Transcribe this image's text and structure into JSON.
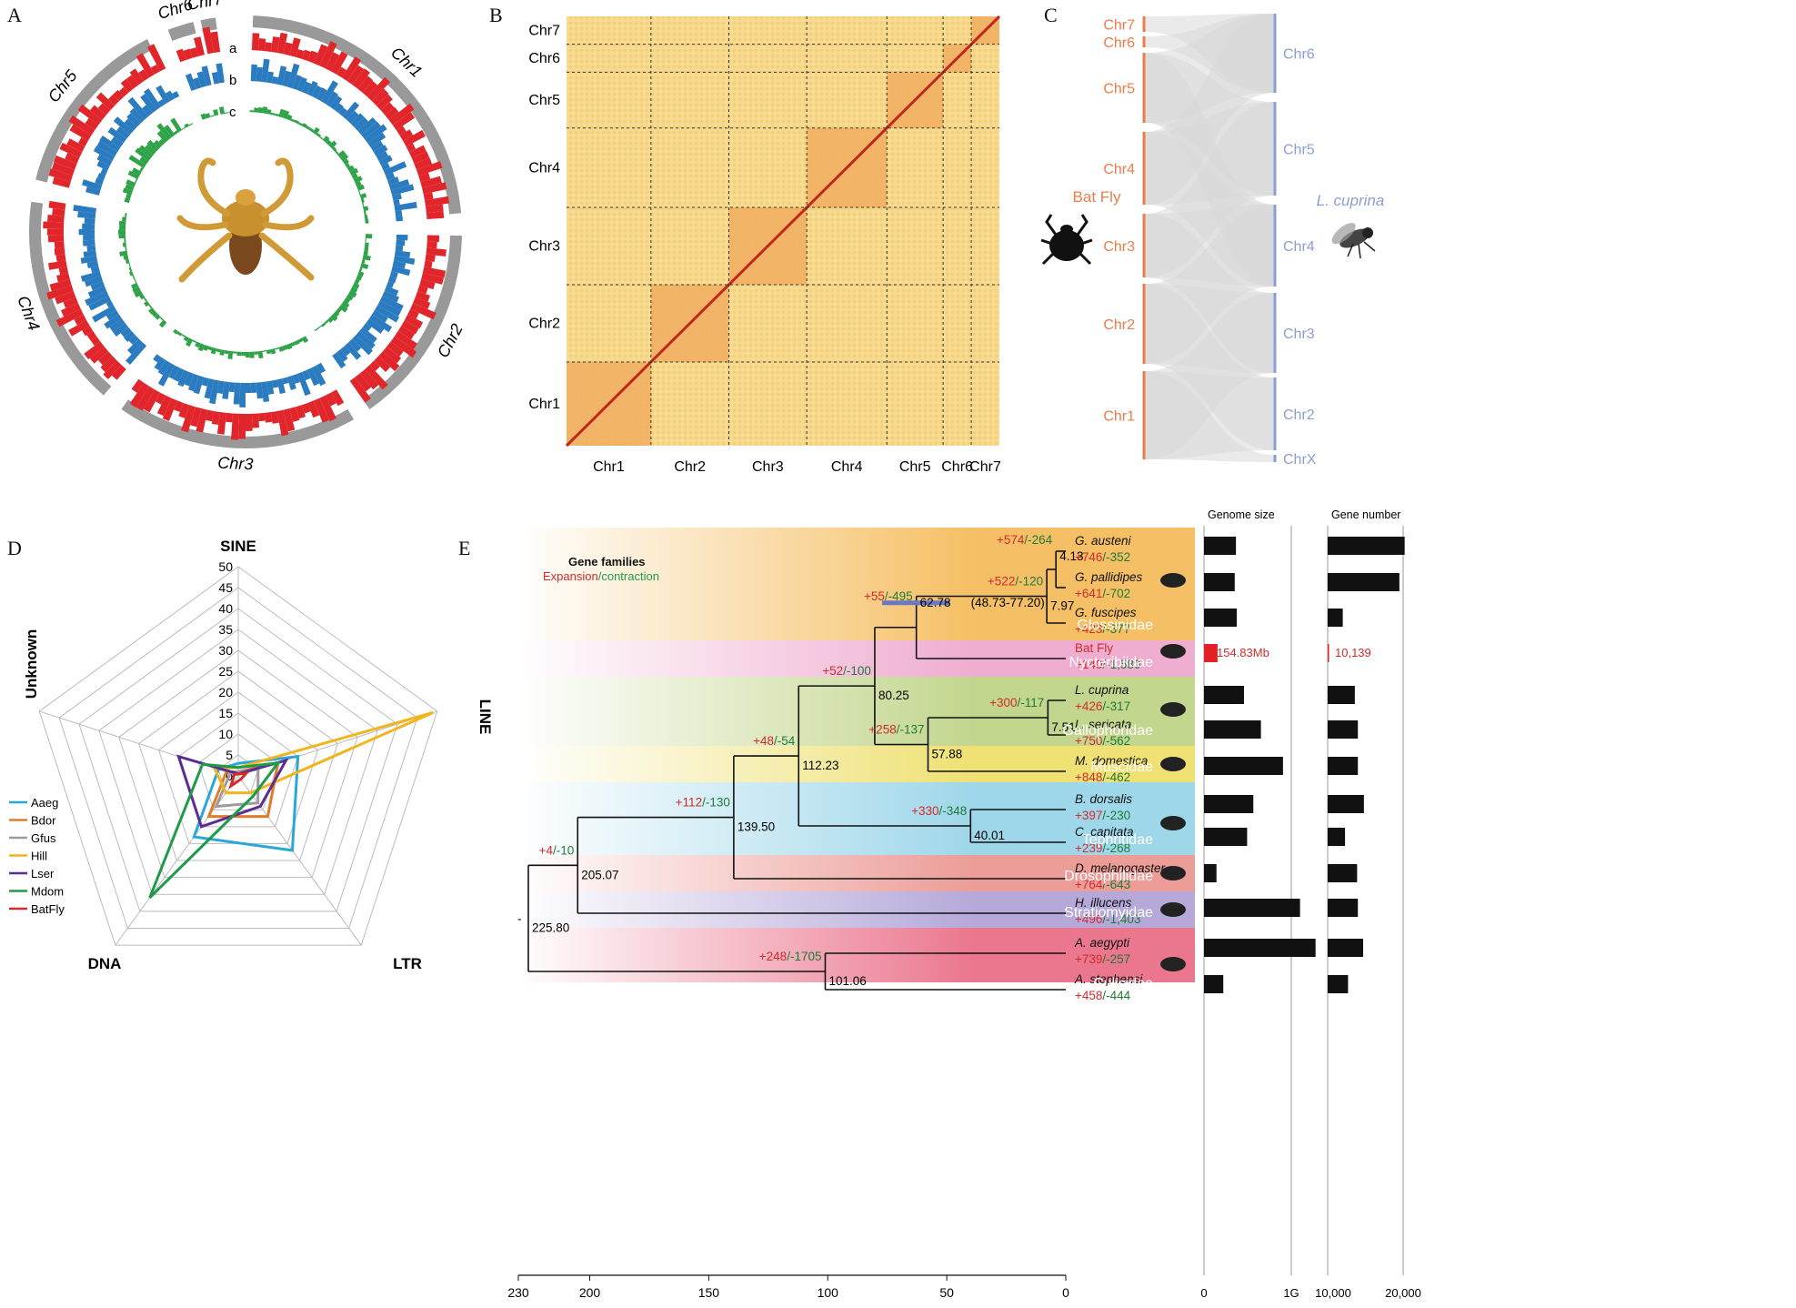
{
  "panels": {
    "a": "A",
    "b": "B",
    "c": "C",
    "d": "D",
    "e": "E"
  },
  "circos": {
    "chromosomes": [
      "Chr1",
      "Chr2",
      "Chr3",
      "Chr4",
      "Chr5",
      "Chr6",
      "Chr7"
    ],
    "ring_labels": [
      "a",
      "b",
      "c"
    ],
    "colors": {
      "chrom": "#999999",
      "a": "#e0262b",
      "b": "#2a7bbf",
      "c": "#2fa348"
    }
  },
  "hic": {
    "chromosomes": [
      "Chr1",
      "Chr2",
      "Chr3",
      "Chr4",
      "Chr5",
      "Chr6",
      "Chr7"
    ]
  },
  "synteny": {
    "left_species": "Bat Fly",
    "right_species": "L. cuprina",
    "left_chromosomes": [
      "Chr7",
      "Chr6",
      "Chr5",
      "Chr4",
      "Chr3",
      "Chr2",
      "Chr1"
    ],
    "right_chromosomes": [
      "Chr6",
      "Chr5",
      "Chr4",
      "Chr3",
      "Chr2",
      "ChrX"
    ],
    "colors": {
      "left": "#ee7c4a",
      "right": "#8b9fd4"
    }
  },
  "chart_data": {
    "type": "radar",
    "axes": [
      "SINE",
      "LINE",
      "LTR",
      "DNA",
      "Unknown"
    ],
    "ticks": [
      "0",
      "5",
      "10",
      "15",
      "20",
      "25",
      "30",
      "35",
      "40",
      "45",
      "50"
    ],
    "rmax": 50,
    "series": [
      {
        "name": "Aaeg",
        "color": "#2aa7d8",
        "values": [
          3,
          15,
          22,
          18,
          5
        ]
      },
      {
        "name": "Bdor",
        "color": "#e07b2c",
        "values": [
          1,
          10,
          12,
          12,
          3
        ]
      },
      {
        "name": "Gfus",
        "color": "#9c9c9c",
        "values": [
          1,
          5,
          8,
          9,
          2
        ]
      },
      {
        "name": "Hill",
        "color": "#f2b51f",
        "values": [
          2,
          49,
          5,
          5,
          6
        ]
      },
      {
        "name": "Lser",
        "color": "#5b2c93",
        "values": [
          0.5,
          12,
          9,
          15,
          15
        ]
      },
      {
        "name": "Mdom",
        "color": "#1f9a4b",
        "values": [
          2,
          10,
          6,
          36,
          9
        ]
      },
      {
        "name": "BatFly",
        "color": "#d42a2a",
        "values": [
          0.5,
          2,
          1,
          3,
          1
        ]
      }
    ]
  },
  "tree": {
    "legend_title": "Gene families",
    "legend_expansion": "Expansion",
    "legend_slash": "/",
    "legend_contraction": "contraction",
    "families": [
      "Glossinidae",
      "Nycteribiidae",
      "Gallophoridae",
      "Muscidae",
      "Tephritidae",
      "Drosophilidae",
      "Stratiomyidae",
      "Culicidae"
    ],
    "species": [
      {
        "name": "G. austeni",
        "plus": "+746",
        "minus": "/-352"
      },
      {
        "name": "G. pallidipes",
        "plus": "+641",
        "minus": "/-702"
      },
      {
        "name": "G. fuscipes",
        "plus": "+423",
        "minus": "/-377"
      },
      {
        "name": "Bat Fly",
        "plus": "+140",
        "minus": "/-1,580"
      },
      {
        "name": "L. cuprina",
        "plus": "+426",
        "minus": "/-317"
      },
      {
        "name": "L. sericata",
        "plus": "+750",
        "minus": "/-562"
      },
      {
        "name": "M. domestica",
        "plus": "+848",
        "minus": "/-462"
      },
      {
        "name": "B. dorsalis",
        "plus": "+397",
        "minus": "/-230"
      },
      {
        "name": "C. capitata",
        "plus": "+239",
        "minus": "/-268"
      },
      {
        "name": "D. melanogaster",
        "plus": "+764",
        "minus": "/-643"
      },
      {
        "name": "H. illucens",
        "plus": "+496",
        "minus": "/-1,403"
      },
      {
        "name": "A. aegypti",
        "plus": "+739",
        "minus": "/-257"
      },
      {
        "name": "A. stephensi",
        "plus": "+458",
        "minus": "/-444"
      }
    ],
    "nodes": [
      {
        "age": "4.13",
        "plus": "+574",
        "minus": "/-264"
      },
      {
        "age": "7.97",
        "plus": "+522",
        "minus": "/-120"
      },
      {
        "age": "62.78",
        "plus": "+55",
        "minus": "/-495",
        "ci": "(48.73-77.20)"
      },
      {
        "age": "7.51",
        "plus": "+300",
        "minus": "/-117"
      },
      {
        "age": "57.88",
        "plus": "+258",
        "minus": "/-137"
      },
      {
        "age": "80.25",
        "plus": "+52",
        "minus": "/-100"
      },
      {
        "age": "40.01",
        "plus": "+330",
        "minus": "/-348"
      },
      {
        "age": "112.23",
        "plus": "+48",
        "minus": "/-54"
      },
      {
        "age": "139.50",
        "plus": "+112",
        "minus": "/-130"
      },
      {
        "age": "205.07",
        "plus": "+4",
        "minus": "/-10"
      },
      {
        "age": "101.06",
        "plus": "+248",
        "minus": "/-1705"
      },
      {
        "age": "225.80",
        "plus": "",
        "minus": ""
      }
    ],
    "axis_ticks": [
      "230",
      "200",
      "150",
      "100",
      "50",
      "0"
    ]
  },
  "bars": {
    "genome_title": "Genome size",
    "gene_title": "Gene number",
    "genome_axis": [
      "0",
      "1G"
    ],
    "gene_axis": [
      "10,000",
      "20,000"
    ],
    "batfly_genome": "154.83Mb",
    "batfly_genes": "10,139",
    "genome_mb": [
      366,
      352,
      375,
      155,
      458,
      652,
      905,
      565,
      494,
      143,
      1100,
      1278,
      221
    ],
    "genes": [
      20200,
      19500,
      12000,
      10139,
      13600,
      14000,
      14000,
      14800,
      12300,
      13900,
      14000,
      14700,
      12700
    ]
  }
}
